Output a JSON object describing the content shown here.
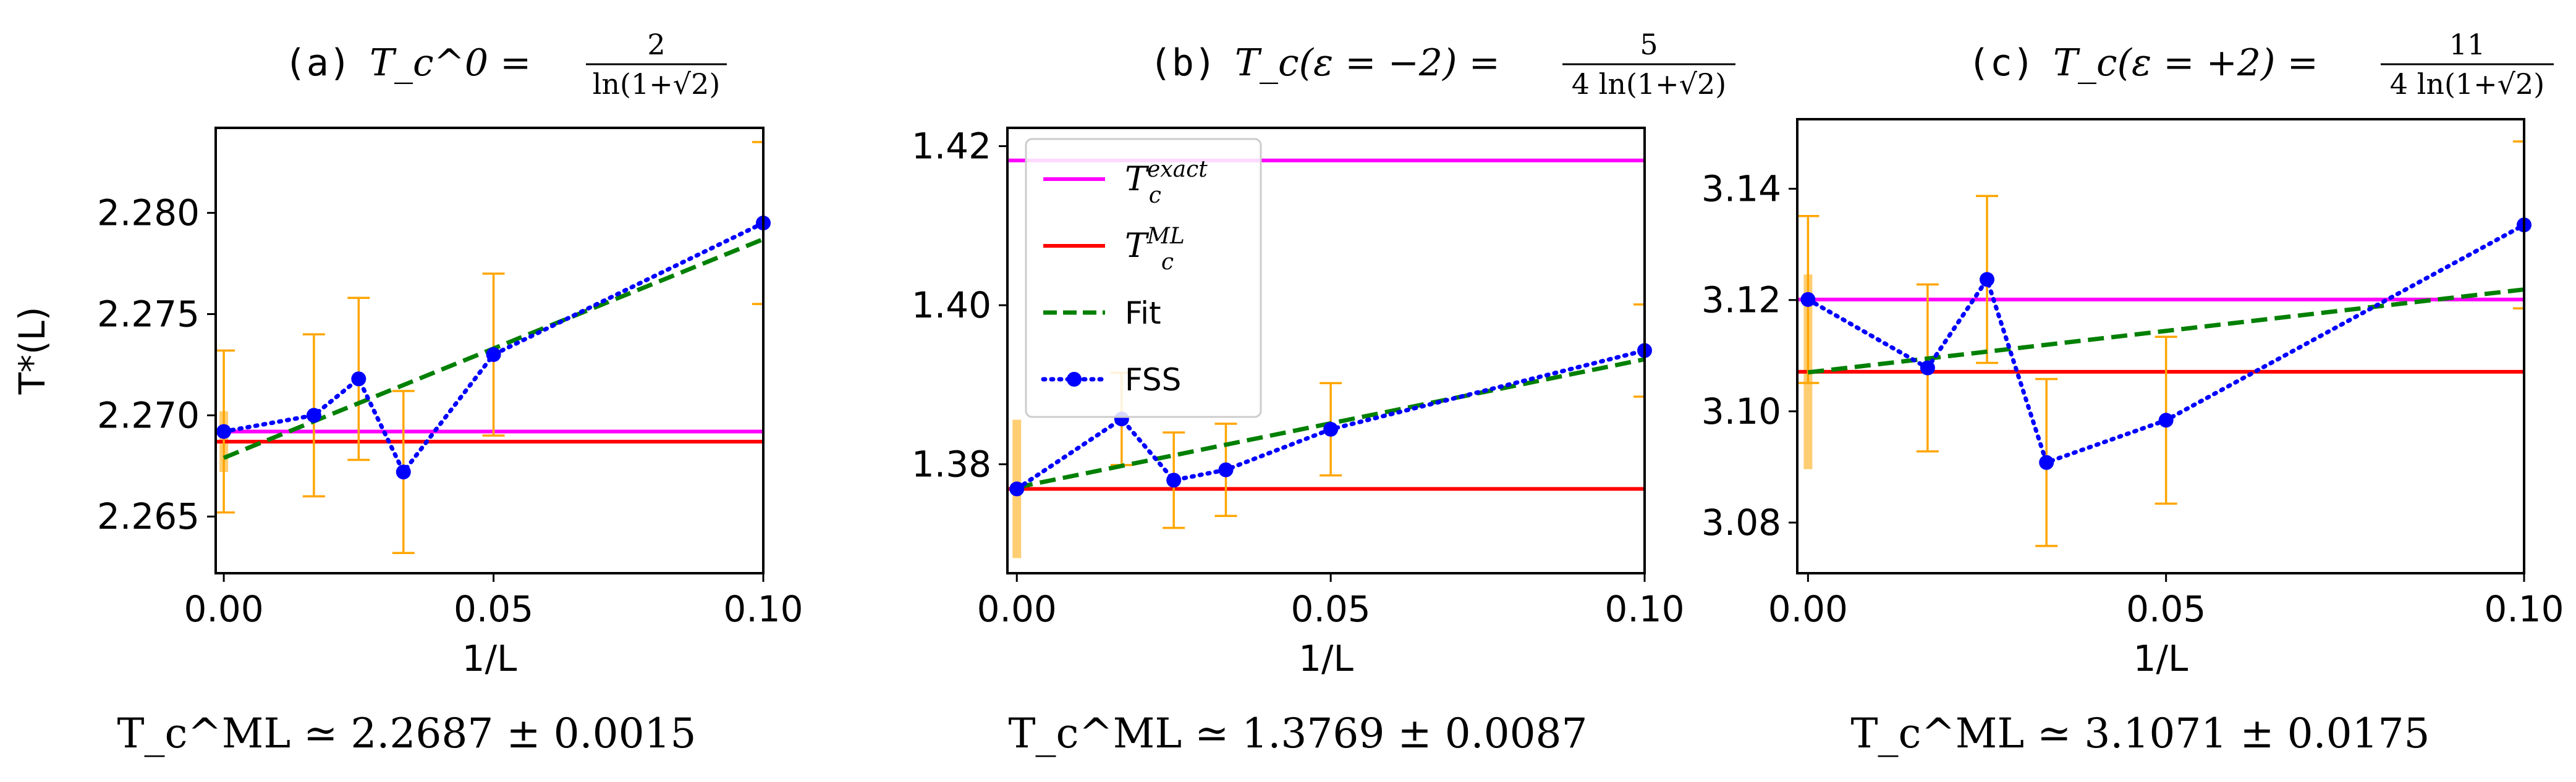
{
  "figure": {
    "ylabel": "T*(L)",
    "xlabel": "1/L",
    "colors": {
      "exact": "#ff00ff",
      "ml": "#ff0000",
      "fit": "#008000",
      "fss": "#0000ff",
      "err": "#ffa500",
      "band": "#ffa500"
    }
  },
  "chart_data": [
    {
      "type": "line",
      "panel": "(a)",
      "title_lhs": "T_c^0 =",
      "title_frac_num": "2",
      "title_frac_den": "ln(1+√2)",
      "xlabel": "1/L",
      "ylabel": "T*(L)",
      "xlim": [
        -0.0015,
        0.1
      ],
      "ylim": [
        2.2622,
        2.2842
      ],
      "xticks": [
        "0.00",
        "0.05",
        "0.10"
      ],
      "xtick_values": [
        0.0,
        0.05,
        0.1
      ],
      "yticks": [
        "2.265",
        "2.270",
        "2.275",
        "2.280"
      ],
      "ytick_values": [
        2.265,
        2.27,
        2.275,
        2.28
      ],
      "legend": null,
      "t_exact": 2.2692,
      "t_ml": 2.2687,
      "t_ml_err": 0.0015,
      "fit": {
        "x": [
          0.0,
          0.1
        ],
        "y": [
          2.2679,
          2.2787
        ]
      },
      "fss": {
        "x": [
          0.0,
          0.0167,
          0.025,
          0.0333,
          0.05,
          0.1
        ],
        "y": [
          2.2692,
          2.27,
          2.2718,
          2.2672,
          2.273,
          2.2795
        ],
        "err": [
          0.004,
          0.004,
          0.004,
          0.004,
          0.004,
          0.004
        ]
      },
      "result_label": "T_c^ML ≃ 2.2687 ± 0.0015"
    },
    {
      "type": "line",
      "panel": "(b)",
      "title_lhs": "T_c(ε = −2) =",
      "title_frac_num": "5",
      "title_frac_den": "4 ln(1+√2)",
      "xlabel": "1/L",
      "ylabel": "",
      "xlim": [
        -0.0015,
        0.1
      ],
      "ylim": [
        1.3663,
        1.4223
      ],
      "xticks": [
        "0.00",
        "0.05",
        "0.10"
      ],
      "xtick_values": [
        0.0,
        0.05,
        0.1
      ],
      "yticks": [
        "1.38",
        "1.40",
        "1.42"
      ],
      "ytick_values": [
        1.38,
        1.4,
        1.42
      ],
      "legend": {
        "placement": "upper-left",
        "entries": [
          {
            "key": "exact",
            "label": "T_c^exact"
          },
          {
            "key": "ml",
            "label": "T_c^ML"
          },
          {
            "key": "fit",
            "label": "Fit"
          },
          {
            "key": "fss",
            "label": "FSS"
          }
        ]
      },
      "t_exact": 1.4182,
      "t_ml": 1.3769,
      "t_ml_err": 0.0087,
      "fit": {
        "x": [
          0.0,
          0.1
        ],
        "y": [
          1.3771,
          1.3932
        ]
      },
      "fss": {
        "x": [
          0.0,
          0.0167,
          0.025,
          0.0333,
          0.05,
          0.1
        ],
        "y": [
          1.3769,
          1.3857,
          1.378,
          1.3793,
          1.3844,
          1.3943
        ],
        "err": [
          0.0,
          0.0058,
          0.006,
          0.0058,
          0.0058,
          0.0058
        ]
      },
      "result_label": "T_c^ML ≃ 1.3769 ± 0.0087"
    },
    {
      "type": "line",
      "panel": "(c)",
      "title_lhs": "T_c(ε = +2) =",
      "title_frac_num": "11",
      "title_frac_den": "4 ln(1+√2)",
      "xlabel": "1/L",
      "ylabel": "",
      "xlim": [
        -0.0015,
        0.1
      ],
      "ylim": [
        3.0709,
        3.1525
      ],
      "xticks": [
        "0.00",
        "0.05",
        "0.10"
      ],
      "xtick_values": [
        0.0,
        0.05,
        0.1
      ],
      "yticks": [
        "3.08",
        "3.10",
        "3.12",
        "3.14"
      ],
      "ytick_values": [
        3.08,
        3.1,
        3.12,
        3.14
      ],
      "legend": null,
      "t_exact": 3.1201,
      "t_ml": 3.1071,
      "t_ml_err": 0.0175,
      "fit": {
        "x": [
          0.0,
          0.1
        ],
        "y": [
          3.107,
          3.1219
        ]
      },
      "fss": {
        "x": [
          0.0,
          0.0167,
          0.025,
          0.0333,
          0.05,
          0.1
        ],
        "y": [
          3.1201,
          3.1078,
          3.1237,
          3.0908,
          3.0984,
          3.1335
        ],
        "err": [
          0.015,
          0.015,
          0.015,
          0.015,
          0.015,
          0.015
        ]
      },
      "result_label": "T_c^ML ≃ 3.1071 ± 0.0175"
    }
  ]
}
